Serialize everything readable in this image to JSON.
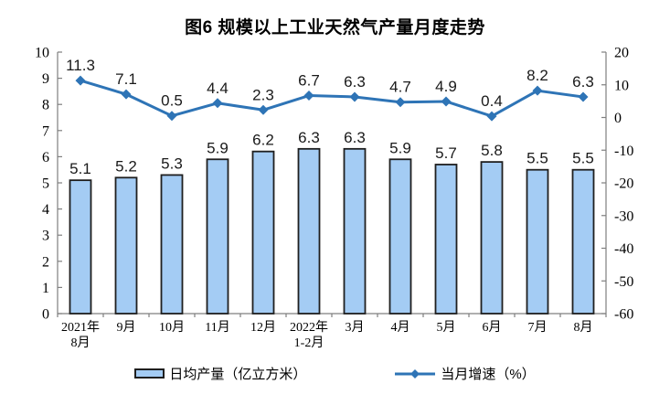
{
  "chart_data": {
    "type": "combo",
    "title": "图6 规模以上工业天然气产量月度走势",
    "categories": [
      [
        "2021年",
        "8月"
      ],
      [
        "9月"
      ],
      [
        "10月"
      ],
      [
        "11月"
      ],
      [
        "12月"
      ],
      [
        "2022年",
        "1-2月"
      ],
      [
        "3月"
      ],
      [
        "4月"
      ],
      [
        "5月"
      ],
      [
        "6月"
      ],
      [
        "7月"
      ],
      [
        "8月"
      ]
    ],
    "series": [
      {
        "name": "日均产量（亿立方米）",
        "type": "bar",
        "axis": "left",
        "values": [
          5.1,
          5.2,
          5.3,
          5.9,
          6.2,
          6.3,
          6.3,
          5.9,
          5.7,
          5.8,
          5.5,
          5.5
        ],
        "fill": "#A4CCF4",
        "stroke": "#1f1f1f"
      },
      {
        "name": "当月增速（%）",
        "type": "line",
        "axis": "right",
        "values": [
          11.3,
          7.1,
          0.5,
          4.4,
          2.3,
          6.7,
          6.3,
          4.7,
          4.9,
          0.4,
          8.2,
          6.3
        ],
        "color": "#2E74B6",
        "marker": "diamond"
      }
    ],
    "axes": {
      "left": {
        "min": 0,
        "max": 10,
        "ticks": [
          0,
          1,
          2,
          3,
          4,
          5,
          6,
          7,
          8,
          9,
          10
        ]
      },
      "right": {
        "min": -60,
        "max": 20,
        "ticks": [
          -60,
          -50,
          -40,
          -30,
          -20,
          -10,
          0,
          10,
          20
        ]
      }
    },
    "grid": false,
    "legend_position": "bottom",
    "axis_color": "#7f7f7f"
  }
}
